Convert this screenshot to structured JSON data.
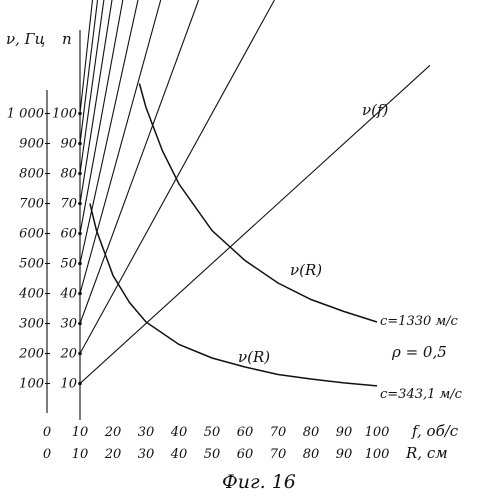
{
  "chart_data": {
    "type": "line",
    "title": "",
    "caption": "Фиг. 16",
    "y_axis_left": {
      "label": "ν, Гц",
      "range": [
        0,
        1100
      ],
      "ticks": [
        "100",
        "200",
        "300",
        "400",
        "500",
        "600",
        "700",
        "800",
        "900",
        "1 000"
      ]
    },
    "y_axis_inner": {
      "label": "n",
      "ticks": [
        "10",
        "20",
        "30",
        "40",
        "50",
        "60",
        "70",
        "80",
        "90",
        "100"
      ]
    },
    "x_axis_f": {
      "label": "f, об/с",
      "range": [
        0,
        100
      ],
      "ticks": [
        "0",
        "10",
        "20",
        "30",
        "40",
        "50",
        "60",
        "70",
        "80",
        "90",
        "100"
      ]
    },
    "x_axis_R": {
      "label": "R, см",
      "range": [
        0,
        100
      ],
      "ticks": [
        "0",
        "10",
        "20",
        "30",
        "40",
        "50",
        "60",
        "70",
        "80",
        "90",
        "100"
      ]
    },
    "line_family": {
      "name": "ν(f)",
      "description_values": "nu = n * f for n = 10..100",
      "n_values": [
        10,
        20,
        30,
        40,
        50,
        60,
        70,
        80,
        90,
        100
      ]
    },
    "series": [
      {
        "name": "ν(R)",
        "end_label": "c=343,1 м/с",
        "rho": 0.5,
        "c": 343.1,
        "points": [
          [
            13,
            700
          ],
          [
            15,
            610
          ],
          [
            20,
            460
          ],
          [
            25,
            370
          ],
          [
            30,
            305
          ],
          [
            40,
            230
          ],
          [
            50,
            185
          ],
          [
            60,
            155
          ],
          [
            70,
            130
          ],
          [
            80,
            115
          ],
          [
            90,
            102
          ],
          [
            100,
            92
          ]
        ]
      },
      {
        "name": "ν(R)",
        "end_label": "c=1330 м/с",
        "rho": 0.5,
        "c": 1330,
        "points": [
          [
            28,
            1100
          ],
          [
            30,
            1020
          ],
          [
            35,
            875
          ],
          [
            40,
            765
          ],
          [
            50,
            610
          ],
          [
            60,
            510
          ],
          [
            70,
            435
          ],
          [
            80,
            380
          ],
          [
            90,
            340
          ],
          [
            100,
            305
          ]
        ]
      }
    ],
    "annotations": {
      "rho": "ρ = 0,5",
      "nu_f_label": "ν(f)",
      "nu_r_label_upper": "ν(R)",
      "nu_r_label_lower": "ν(R)"
    },
    "grid": false
  }
}
